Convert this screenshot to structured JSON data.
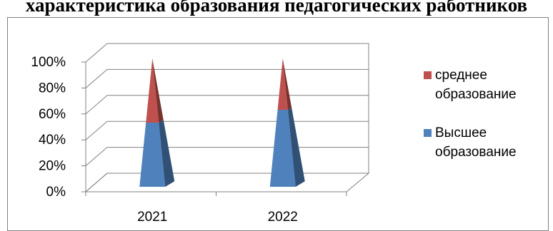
{
  "page": {
    "title": "характеристика образования педагогических работников"
  },
  "chart_data": {
    "type": "bar",
    "shape": "3d-cone-stacked-percent",
    "title": "",
    "xlabel": "",
    "ylabel": "",
    "categories": [
      "2021",
      "2022"
    ],
    "y_ticks": [
      "0%",
      "20%",
      "40%",
      "60%",
      "80%",
      "100%"
    ],
    "ylim": [
      0,
      100
    ],
    "grid": true,
    "legend_position": "right",
    "series": [
      {
        "name": "Высшее образование",
        "values": [
          50,
          60
        ],
        "color": "#4f81bd"
      },
      {
        "name": "среднее образование",
        "values": [
          50,
          40
        ],
        "color": "#c0504d"
      }
    ],
    "legend": [
      {
        "series": 1,
        "lines": [
          "среднее",
          "образование"
        ],
        "color": "#c0504d"
      },
      {
        "series": 0,
        "lines": [
          "Высшее",
          "образование"
        ],
        "color": "#4f81bd"
      }
    ]
  }
}
